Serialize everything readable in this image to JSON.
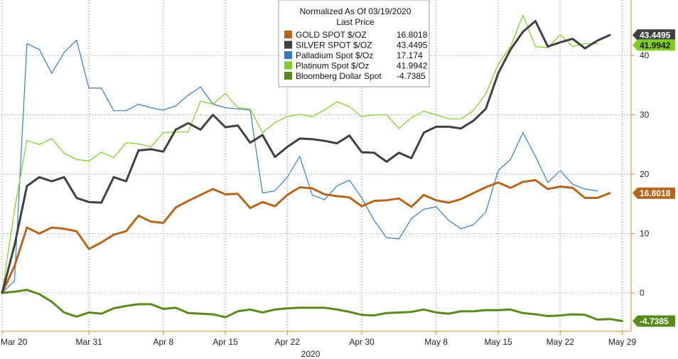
{
  "chart_data": {
    "type": "line",
    "title": "Normalized As Of 03/19/2020",
    "subtitle": "Last Price",
    "year_label": "2020",
    "x_ticks": [
      "Mar 20",
      "Mar 31",
      "Apr 8",
      "Apr 15",
      "Apr 22",
      "Apr 30",
      "May 8",
      "May 15",
      "May 22",
      "May 29"
    ],
    "x_tick_index": [
      0,
      7,
      13,
      18,
      23,
      29,
      35,
      40,
      45,
      50
    ],
    "y_ticks": [
      0,
      10,
      20,
      30,
      40
    ],
    "ylim": [
      -6,
      49
    ],
    "grid": true,
    "legend_position": "top-center",
    "series": [
      {
        "name": "GOLD SPOT $/OZ",
        "last": "16.8018",
        "color": "#b5651d",
        "values": [
          0,
          4.5,
          11,
          10,
          11,
          10.8,
          10.4,
          7.4,
          8.5,
          9.8,
          10.4,
          13,
          12,
          11.8,
          14.4,
          15.5,
          16.5,
          17.5,
          16.6,
          16.7,
          14.3,
          15.3,
          14.6,
          16.5,
          17.8,
          17.6,
          16.6,
          16.3,
          16.1,
          14.6,
          15.5,
          15.6,
          15.9,
          14.5,
          16.5,
          15.6,
          15.2,
          15.8,
          16.8,
          17.8,
          18.6,
          17.7,
          18.7,
          19.0,
          17.5,
          17.9,
          17.7,
          16.0,
          16.0,
          16.8
        ]
      },
      {
        "name": "SILVER SPOT $/OZ",
        "last": "43.4495",
        "color": "#404040",
        "values": [
          0,
          8,
          18,
          19.5,
          18.8,
          19.5,
          16,
          15.3,
          15.2,
          19.5,
          18.8,
          24,
          24.2,
          23.8,
          27.5,
          28.6,
          27.5,
          30.0,
          27.9,
          28.2,
          25.3,
          26.6,
          22.9,
          24.6,
          26.0,
          25.9,
          25.6,
          25.2,
          26.5,
          23.7,
          23.6,
          22.1,
          23.6,
          22.7,
          27.0,
          28.0,
          28.0,
          27.7,
          29.0,
          31.0,
          37.0,
          41.0,
          44.0,
          45.8,
          41.5,
          42.2,
          42.8,
          41.2,
          42.5,
          43.4495
        ]
      },
      {
        "name": "Palladium Spot $/Oz",
        "last": "17.174",
        "color": "#3a7bbf",
        "values": [
          0,
          2,
          42,
          41,
          37,
          40.5,
          42.6,
          34.5,
          34.5,
          30.7,
          30.7,
          31.8,
          31.2,
          30.8,
          31.5,
          33.3,
          34.7,
          31.8,
          31.2,
          31.0,
          30.8,
          16.8,
          17.2,
          19.5,
          23,
          16.5,
          15.7,
          18,
          19,
          16,
          12.2,
          9.3,
          9.1,
          12.5,
          14.1,
          14.5,
          12.2,
          10.8,
          11.5,
          13.6,
          20.6,
          22.5,
          27,
          23,
          18.6,
          20.6,
          18.3,
          17.5,
          17.174
        ]
      },
      {
        "name": "Platinum Spot $/Oz",
        "last": "41.9942",
        "color": "#80cc28",
        "values": [
          0,
          14,
          25.7,
          25,
          26,
          23.5,
          22.5,
          22.2,
          23.7,
          22.8,
          25.3,
          25.1,
          24.6,
          27.0,
          27.1,
          27.1,
          32.3,
          31.8,
          33.6,
          31.2,
          31.0,
          27.0,
          28.7,
          29.7,
          30.1,
          29.7,
          30.8,
          32.2,
          31.4,
          29.7,
          30.0,
          30.0,
          27.7,
          29.5,
          30.6,
          30.0,
          29.3,
          29.3,
          30.7,
          33.5,
          38.5,
          41.5,
          46.8,
          41.5,
          41.3,
          43.5,
          41.5,
          42.0,
          41.9942
        ]
      },
      {
        "name": "Bloomberg Dollar Spot",
        "last": "-4.7385",
        "color": "#5a8a1e",
        "values": [
          0,
          0.2,
          0.5,
          -0.2,
          -1.5,
          -3.3,
          -4.0,
          -3.3,
          -3.5,
          -2.6,
          -2.2,
          -1.9,
          -1.9,
          -2.7,
          -2.5,
          -3.4,
          -3.5,
          -3.6,
          -4.1,
          -3.1,
          -2.8,
          -3.3,
          -2.8,
          -2.6,
          -2.5,
          -2.5,
          -2.5,
          -2.8,
          -3.2,
          -3.7,
          -3.8,
          -3.4,
          -3.3,
          -3.2,
          -2.8,
          -3.3,
          -3.5,
          -3.1,
          -3.1,
          -2.9,
          -2.9,
          -2.8,
          -3.4,
          -3.6,
          -3.9,
          -3.8,
          -3.6,
          -3.7,
          -4.5,
          -4.4,
          -4.7385
        ]
      }
    ]
  }
}
